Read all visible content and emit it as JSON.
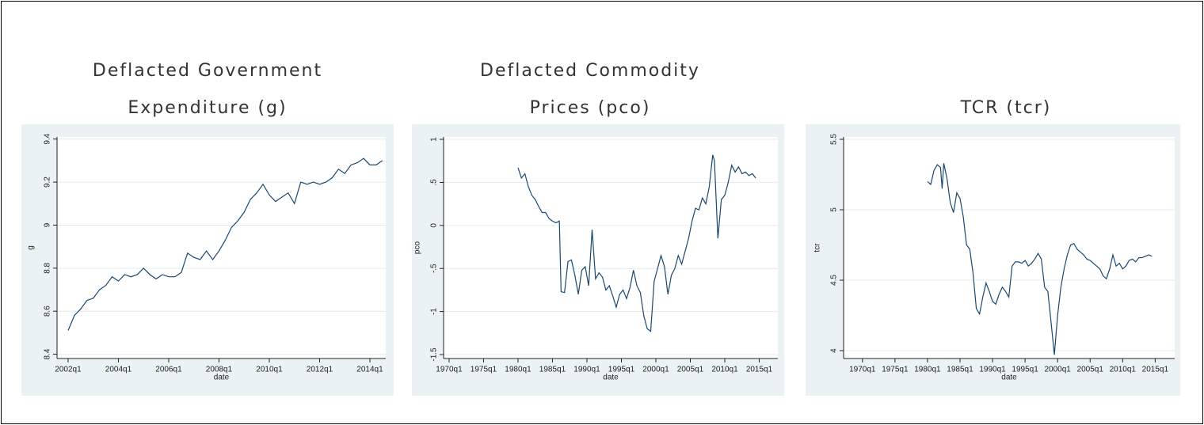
{
  "chart_data": [
    {
      "type": "line",
      "title": [
        "Deflacted Government",
        "Expenditure (g)"
      ],
      "xlabel": "date",
      "ylabel": "g",
      "grid": true,
      "xlim": [
        2001.56,
        2014.63
      ],
      "ylim": [
        8.38,
        9.41
      ],
      "xticks": [
        {
          "value": 2002,
          "label": "2002q1"
        },
        {
          "value": 2004,
          "label": "2004q1"
        },
        {
          "value": 2006,
          "label": "2006q1"
        },
        {
          "value": 2008,
          "label": "2008q1"
        },
        {
          "value": 2010,
          "label": "2010q1"
        },
        {
          "value": 2012,
          "label": "2012q1"
        },
        {
          "value": 2014,
          "label": "2014q1"
        }
      ],
      "yticks": [
        {
          "value": 8.4,
          "label": "8.4"
        },
        {
          "value": 8.6,
          "label": "8.6"
        },
        {
          "value": 8.8,
          "label": "8.8"
        },
        9,
        {
          "value": 9.2,
          "label": "9.2"
        },
        {
          "value": 9.4,
          "label": "9.4"
        }
      ],
      "x": [
        "2002q1",
        "2002q2",
        "2002q3",
        "2002q4",
        "2003q1",
        "2003q2",
        "2003q3",
        "2003q4",
        "2004q1",
        "2004q2",
        "2004q3",
        "2004q4",
        "2005q1",
        "2005q2",
        "2005q3",
        "2005q4",
        "2006q1",
        "2006q2",
        "2006q3",
        "2006q4",
        "2007q1",
        "2007q2",
        "2007q3",
        "2007q4",
        "2008q1",
        "2008q2",
        "2008q3",
        "2008q4",
        "2009q1",
        "2009q2",
        "2009q3",
        "2009q4",
        "2010q1",
        "2010q2",
        "2010q3",
        "2010q4",
        "2011q1",
        "2011q2",
        "2011q3",
        "2011q4",
        "2012q1",
        "2012q2",
        "2012q3",
        "2012q4",
        "2013q1",
        "2013q2",
        "2013q3",
        "2013q4",
        "2014q1",
        "2014q2",
        "2014q3"
      ],
      "series": [
        {
          "name": "g",
          "color": "#1a476f",
          "values": [
            8.51,
            8.58,
            8.61,
            8.65,
            8.66,
            8.7,
            8.72,
            8.76,
            8.74,
            8.77,
            8.76,
            8.77,
            8.8,
            8.77,
            8.75,
            8.77,
            8.76,
            8.76,
            8.78,
            8.87,
            8.85,
            8.84,
            8.88,
            8.84,
            8.88,
            8.93,
            8.99,
            9.02,
            9.06,
            9.12,
            9.15,
            9.19,
            9.14,
            9.11,
            9.13,
            9.15,
            9.1,
            9.2,
            9.19,
            9.2,
            9.19,
            9.2,
            9.22,
            9.26,
            9.24,
            9.28,
            9.29,
            9.31,
            9.28,
            9.28,
            9.3
          ]
        }
      ]
    },
    {
      "type": "line",
      "title": [
        "Deflacted Commodity",
        "Prices (pco)"
      ],
      "xlabel": "date",
      "ylabel": "pco",
      "grid": true,
      "xlim": [
        1969.2,
        2017.7
      ],
      "ylim": [
        -1.546,
        1.028
      ],
      "xticks": [
        {
          "value": 1970,
          "label": "1970q1"
        },
        {
          "value": 1975,
          "label": "1975q1"
        },
        {
          "value": 1980,
          "label": "1980q1"
        },
        {
          "value": 1985,
          "label": "1985q1"
        },
        {
          "value": 1990,
          "label": "1990q1"
        },
        {
          "value": 1995,
          "label": "1995q1"
        },
        {
          "value": 2000,
          "label": "2000q1"
        },
        {
          "value": 2005,
          "label": "2005q1"
        },
        {
          "value": 2010,
          "label": "2010q1"
        },
        {
          "value": 2015,
          "label": "2015q1"
        }
      ],
      "yticks": [
        -1.5,
        -1,
        {
          "value": -0.5,
          "label": "-.5"
        },
        0,
        {
          "value": 0.5,
          "label": ".5"
        },
        1
      ],
      "x": [
        "1980q1",
        "1980q3",
        "1981q1",
        "1981q3",
        "1982q1",
        "1982q3",
        "1983q1",
        "1983q3",
        "1984q1",
        "1984q3",
        "1985q1",
        "1985q3",
        "1986q1",
        "1986q2",
        "1986q4",
        "1987q2",
        "1987q4",
        "1988q2",
        "1988q4",
        "1989q2",
        "1989q4",
        "1990q2",
        "1990q4",
        "1991q2",
        "1991q4",
        "1992q2",
        "1992q4",
        "1993q2",
        "1993q4",
        "1994q2",
        "1994q4",
        "1995q2",
        "1995q4",
        "1996q2",
        "1996q4",
        "1997q2",
        "1997q4",
        "1998q2",
        "1998q4",
        "1999q2",
        "1999q4",
        "2000q2",
        "2000q4",
        "2001q2",
        "2001q4",
        "2002q2",
        "2002q4",
        "2003q2",
        "2003q4",
        "2004q2",
        "2004q4",
        "2005q2",
        "2005q4",
        "2006q2",
        "2006q4",
        "2007q2",
        "2007q4",
        "2008q2",
        "2008q3",
        "2009q1",
        "2009q3",
        "2010q1",
        "2010q3",
        "2011q1",
        "2011q3",
        "2012q1",
        "2012q3",
        "2013q1",
        "2013q3",
        "2014q1",
        "2014q3"
      ],
      "series": [
        {
          "name": "pco",
          "color": "#1a476f",
          "values": [
            0.67,
            0.55,
            0.6,
            0.45,
            0.35,
            0.3,
            0.22,
            0.15,
            0.15,
            0.08,
            0.05,
            0.03,
            0.05,
            -0.77,
            -0.78,
            -0.42,
            -0.4,
            -0.58,
            -0.8,
            -0.52,
            -0.48,
            -0.7,
            -0.05,
            -0.62,
            -0.55,
            -0.6,
            -0.75,
            -0.7,
            -0.82,
            -0.95,
            -0.8,
            -0.75,
            -0.85,
            -0.72,
            -0.52,
            -0.7,
            -0.78,
            -1.05,
            -1.2,
            -1.23,
            -0.65,
            -0.5,
            -0.35,
            -0.48,
            -0.8,
            -0.58,
            -0.5,
            -0.35,
            -0.45,
            -0.3,
            -0.15,
            0.05,
            0.2,
            0.18,
            0.32,
            0.25,
            0.45,
            0.82,
            0.75,
            -0.15,
            0.3,
            0.35,
            0.5,
            0.7,
            0.62,
            0.68,
            0.6,
            0.62,
            0.58,
            0.6,
            0.55
          ]
        }
      ]
    },
    {
      "type": "line",
      "title": [
        "TCR (tcr)"
      ],
      "xlabel": "date",
      "ylabel": "tcr",
      "grid": true,
      "xlim": [
        1967.1,
        2018.0
      ],
      "ylim": [
        3.944,
        5.517
      ],
      "xticks": [
        {
          "value": 1970,
          "label": "1970q1"
        },
        {
          "value": 1975,
          "label": "1975q1"
        },
        {
          "value": 1980,
          "label": "1980q1"
        },
        {
          "value": 1985,
          "label": "1985q1"
        },
        {
          "value": 1990,
          "label": "1990q1"
        },
        {
          "value": 1995,
          "label": "1995q1"
        },
        {
          "value": 2000,
          "label": "2000q1"
        },
        {
          "value": 2005,
          "label": "2005q1"
        },
        {
          "value": 2010,
          "label": "2010q1"
        },
        {
          "value": 2015,
          "label": "2015q1"
        }
      ],
      "yticks": [
        4,
        4.5,
        5,
        5.5
      ],
      "x": [
        "1980q1",
        "1980q3",
        "1981q1",
        "1981q3",
        "1982q1",
        "1982q2",
        "1982q3",
        "1983q1",
        "1983q3",
        "1984q1",
        "1984q3",
        "1985q1",
        "1985q3",
        "1986q1",
        "1986q3",
        "1987q1",
        "1987q3",
        "1988q1",
        "1988q3",
        "1989q1",
        "1989q3",
        "1990q1",
        "1990q3",
        "1991q1",
        "1991q3",
        "1992q1",
        "1992q3",
        "1993q1",
        "1993q3",
        "1994q1",
        "1994q3",
        "1995q1",
        "1995q3",
        "1996q1",
        "1996q3",
        "1997q1",
        "1997q3",
        "1998q1",
        "1998q3",
        "1999q1",
        "1999q3",
        "2000q1",
        "2000q3",
        "2001q1",
        "2001q3",
        "2002q1",
        "2002q3",
        "2003q1",
        "2003q3",
        "2004q1",
        "2004q3",
        "2005q1",
        "2005q3",
        "2006q1",
        "2006q3",
        "2007q1",
        "2007q3",
        "2008q1",
        "2008q3",
        "2009q1",
        "2009q3",
        "2010q1",
        "2010q3",
        "2011q1",
        "2011q3",
        "2012q1",
        "2012q3",
        "2013q1",
        "2013q3",
        "2014q1",
        "2014q3"
      ],
      "series": [
        {
          "name": "tcr",
          "color": "#1a476f",
          "values": [
            5.2,
            5.18,
            5.28,
            5.32,
            5.3,
            5.15,
            5.33,
            5.22,
            5.05,
            4.98,
            5.12,
            5.08,
            4.95,
            4.75,
            4.72,
            4.55,
            4.3,
            4.26,
            4.38,
            4.48,
            4.42,
            4.35,
            4.33,
            4.4,
            4.45,
            4.42,
            4.38,
            4.6,
            4.63,
            4.63,
            4.62,
            4.64,
            4.6,
            4.62,
            4.65,
            4.69,
            4.65,
            4.45,
            4.42,
            4.2,
            3.97,
            4.25,
            4.45,
            4.58,
            4.68,
            4.75,
            4.76,
            4.72,
            4.7,
            4.68,
            4.65,
            4.64,
            4.62,
            4.6,
            4.58,
            4.53,
            4.51,
            4.58,
            4.68,
            4.6,
            4.62,
            4.58,
            4.6,
            4.64,
            4.65,
            4.63,
            4.66,
            4.66,
            4.67,
            4.68,
            4.67
          ]
        }
      ]
    }
  ]
}
